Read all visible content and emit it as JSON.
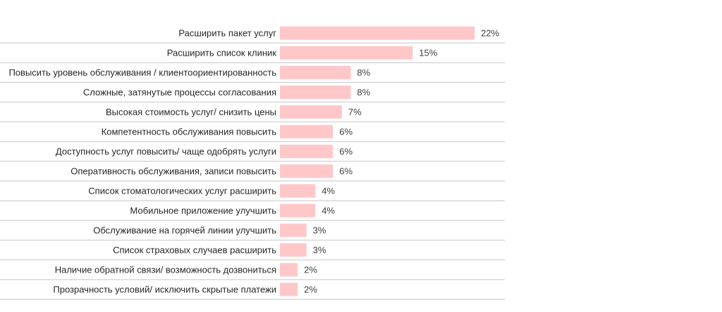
{
  "chart_data": {
    "type": "bar",
    "orientation": "horizontal",
    "title": "",
    "xlabel": "",
    "ylabel": "",
    "bar_color": "#ffc7c8",
    "grid": false,
    "legend": "none",
    "xlim": [
      0,
      22
    ],
    "value_suffix": "%",
    "categories": [
      "Расширить пакет услуг",
      "Расширить список клиник",
      "Повысить уровень обслуживания / клиентоориентированность",
      "Сложные, затянутые процессы согласования",
      "Высокая стоимость услуг/ снизить цены",
      "Компетентность обслуживания повысить",
      "Доступность услуг повысить/ чаще одобрять услуги",
      "Оперативность обслуживания, записи повысить",
      "Список стоматологических услуг расширить",
      "Мобильное приложение улучшить",
      "Обслуживание на горячей линии улучшить",
      "Список страховых случаев расширить",
      "Наличие обратной связи/ возможность дозвониться",
      "Прозрачность условий/ исключить скрытые платежи"
    ],
    "values": [
      22,
      15,
      8,
      8,
      7,
      6,
      6,
      6,
      4,
      4,
      3,
      3,
      2,
      2
    ],
    "data_labels": [
      "22%",
      "15%",
      "8%",
      "8%",
      "7%",
      "6%",
      "6%",
      "6%",
      "4%",
      "4%",
      "3%",
      "3%",
      "2%",
      "2%"
    ]
  }
}
